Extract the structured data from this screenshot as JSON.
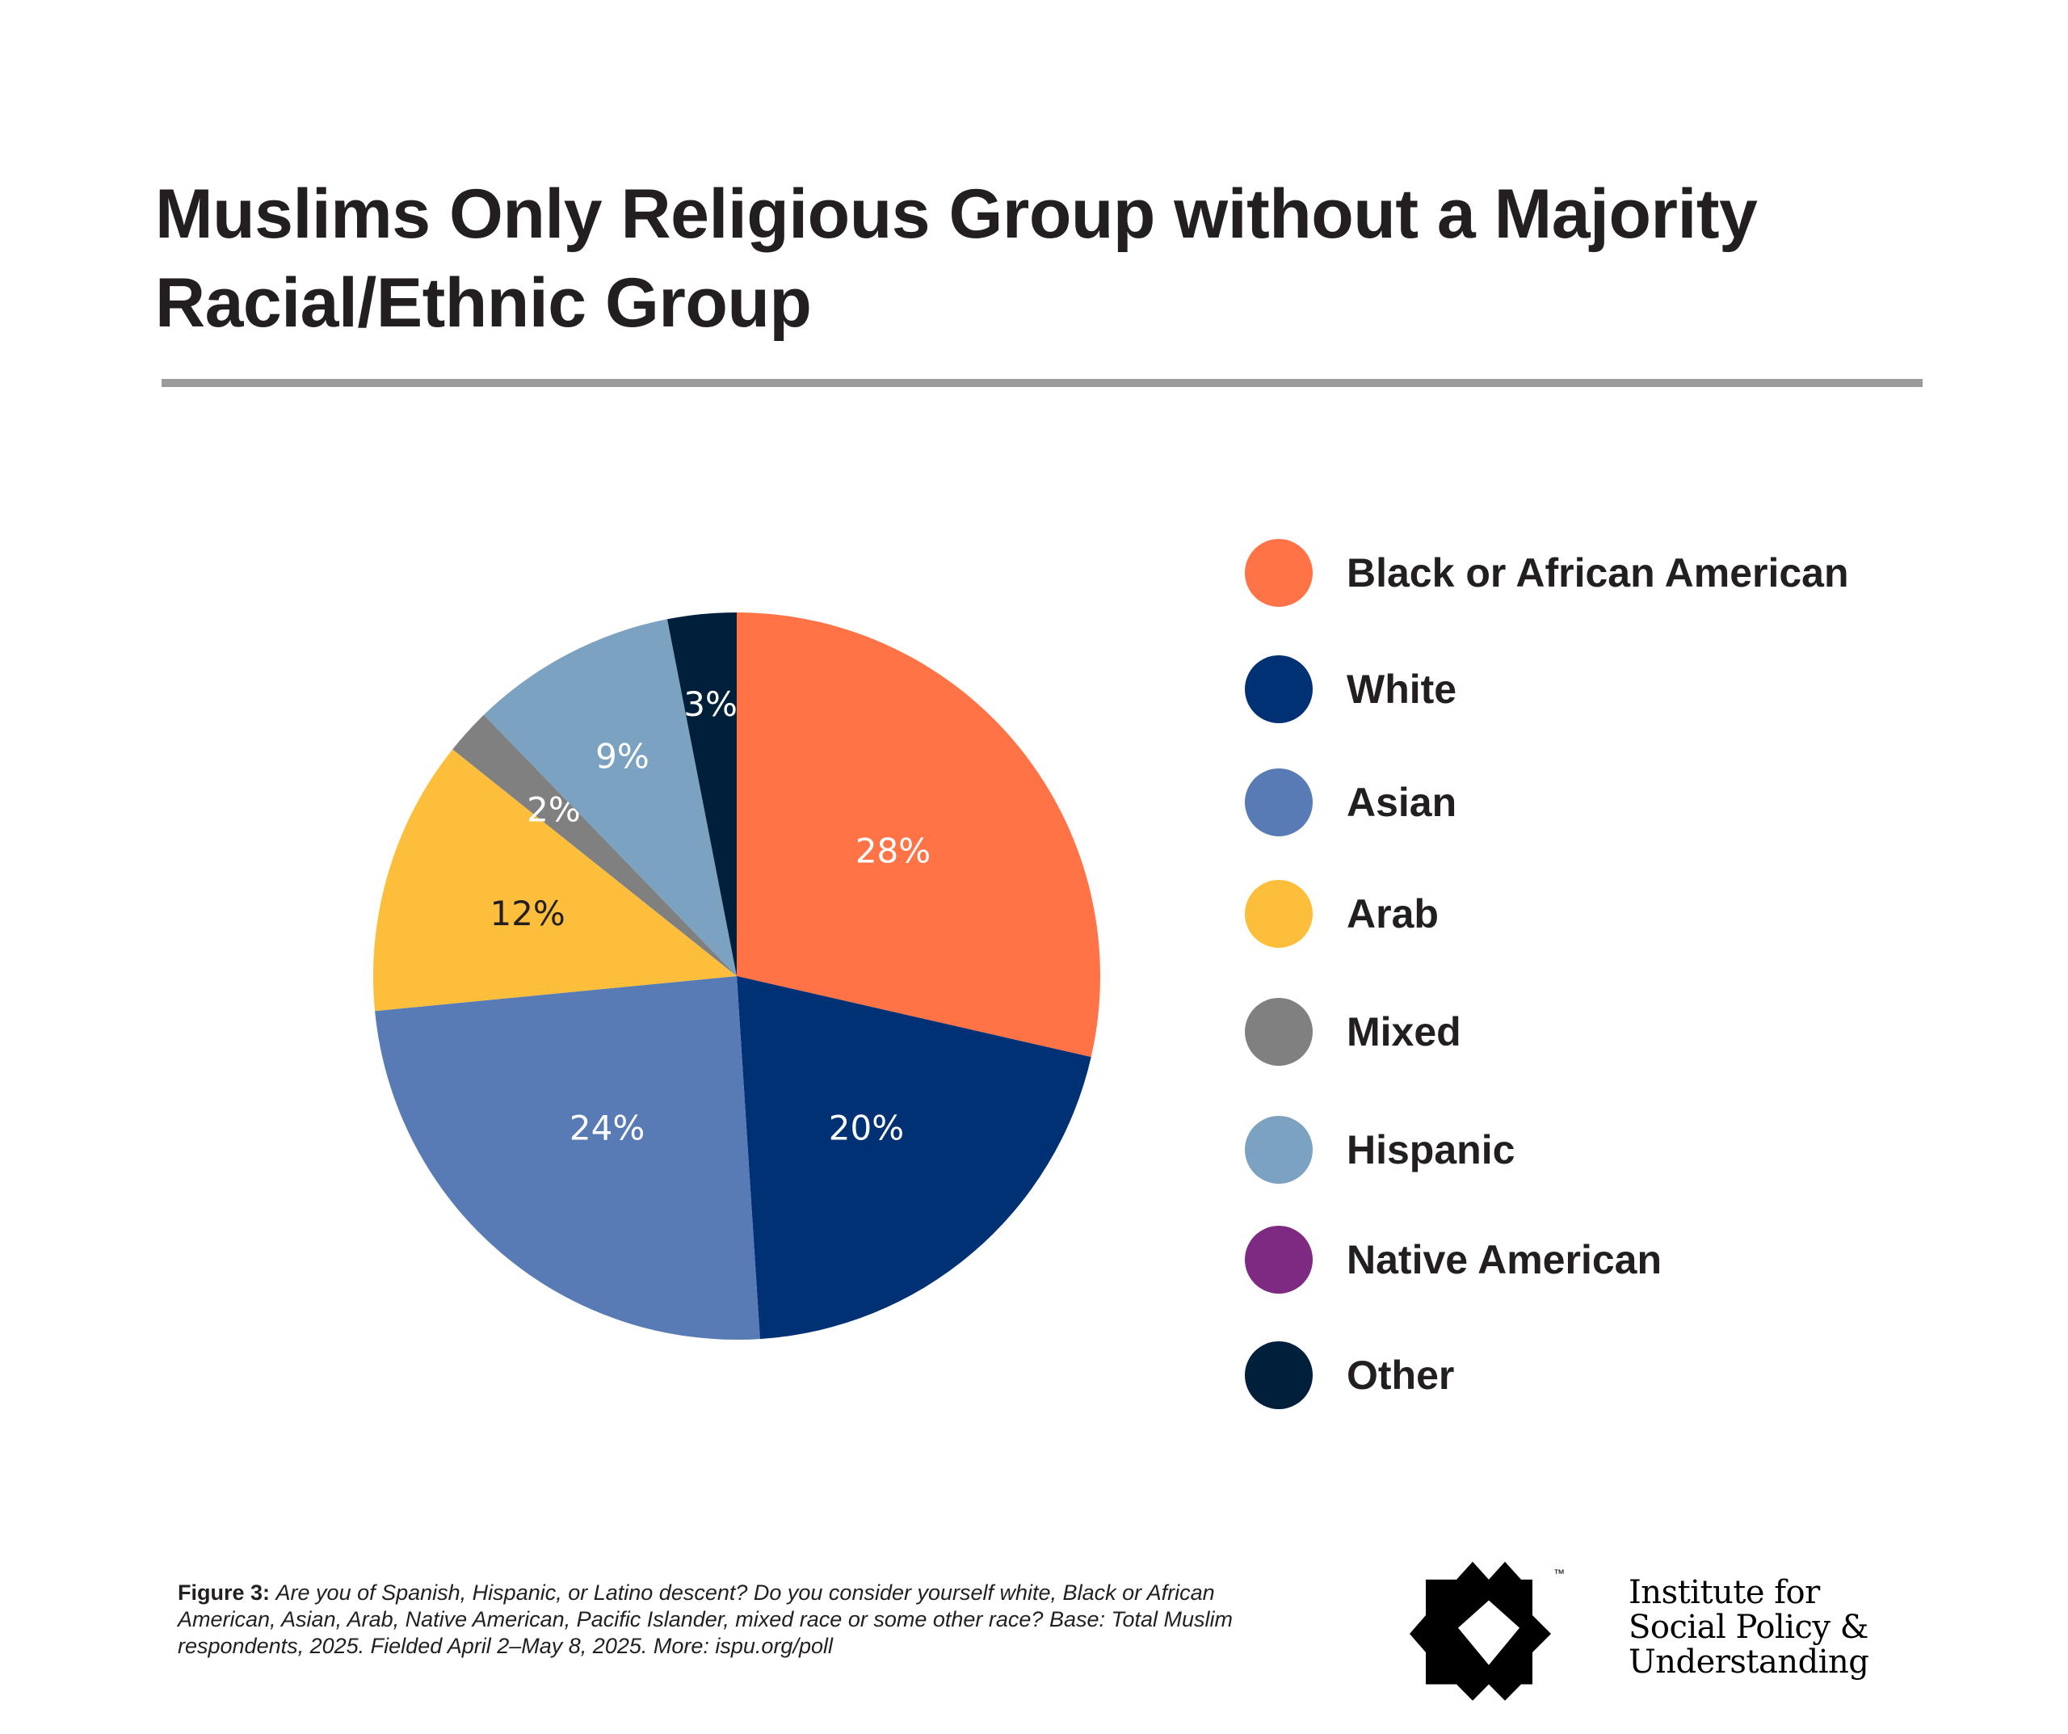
{
  "chart_data": {
    "type": "pie",
    "title": "Muslims Only Religious Group without a Majority Racial/Ethnic Group",
    "unit": "%",
    "start": "top, clockwise",
    "slices": [
      {
        "name": "Black or African American",
        "value": 28,
        "label": "28%",
        "color": "#ff7346"
      },
      {
        "name": "White",
        "value": 20,
        "label": "20%",
        "color": "#003175"
      },
      {
        "name": "Asian",
        "value": 24,
        "label": "24%",
        "color": "#587bb5"
      },
      {
        "name": "Arab",
        "value": 12,
        "label": "12%",
        "color": "#fdbf3b"
      },
      {
        "name": "Mixed",
        "value": 2,
        "label": "2%",
        "color": "#808080"
      },
      {
        "name": "Hispanic",
        "value": 9,
        "label": "9%",
        "color": "#7ba2c0"
      },
      {
        "name": "Native American",
        "value": 0,
        "label": "",
        "color": "#7f2a82"
      },
      {
        "name": "Other",
        "value": 3,
        "label": "3%",
        "color": "#001f3b"
      }
    ],
    "legend_position": "right"
  },
  "title": "Muslims Only Religious Group without a Majority Racial/Ethnic Group",
  "footnote": {
    "label": "Figure 3:",
    "text": "Are you of Spanish, Hispanic, or Latino descent? Do you consider yourself white, Black or African American, Asian, Arab, Native American, Pacific Islander, mixed race or some other race? Base: Total Muslim respondents, 2025. Fielded April 2–May 8, 2025. More: ispu.org/poll"
  },
  "logo": {
    "trademark": "™",
    "line1": "Institute for",
    "line2": "Social Policy &",
    "line3": "Understanding"
  }
}
